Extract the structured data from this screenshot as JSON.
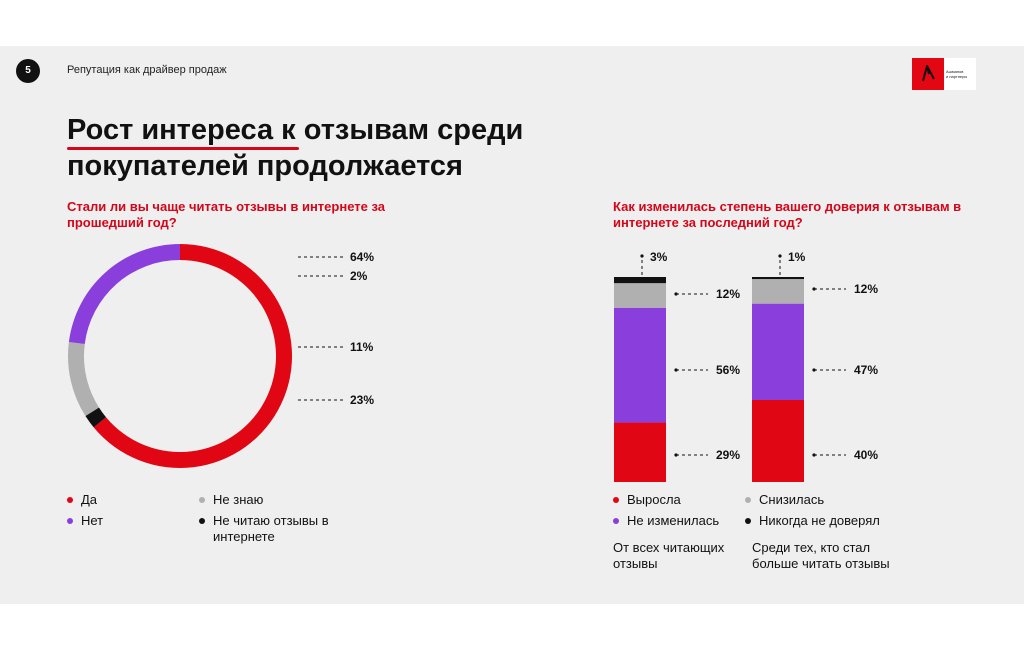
{
  "header": {
    "page_number": "5",
    "subtitle": "Репутация как драйвер продаж",
    "logo_text_line1": "Ашманов",
    "logo_text_line2": "и партнеры"
  },
  "title": {
    "line1": "Рост интереса к отзывам среди",
    "line2": "покупателей продолжается"
  },
  "colors": {
    "red": "#e00614",
    "purple": "#8a3fdc",
    "grey": "#b0b0b0",
    "black": "#111111",
    "accent": "#d4061a"
  },
  "left": {
    "question": "Стали ли вы чаще читать отзывы в интернете за прошедший год?",
    "legend": [
      {
        "label": "Да",
        "color": "#e00614"
      },
      {
        "label": "Нет",
        "color": "#8a3fdc"
      },
      {
        "label": "Не знаю",
        "color": "#b0b0b0"
      },
      {
        "label": "Не читаю отзывы в интернете",
        "color": "#111111"
      }
    ]
  },
  "right": {
    "question": "Как изменилась степень вашего доверия к отзывам в интернете за последний год?",
    "legend": [
      {
        "label": "Выросла",
        "color": "#e00614"
      },
      {
        "label": "Не изменилась",
        "color": "#8a3fdc"
      },
      {
        "label": "Снизилась",
        "color": "#b0b0b0"
      },
      {
        "label": "Никогда не доверял",
        "color": "#111111"
      }
    ],
    "captions": [
      "От всех читающих отзывы",
      "Среди тех, кто стал больше читать отзывы"
    ]
  },
  "chart_data": [
    {
      "type": "pie",
      "title": "",
      "categories": [
        "Да",
        "Не читаю отзывы в интернете",
        "Не знаю",
        "Нет"
      ],
      "values": [
        64,
        2,
        11,
        23
      ],
      "labels": [
        "64%",
        "2%",
        "11%",
        "23%"
      ],
      "colors": [
        "#e00614",
        "#111111",
        "#b0b0b0",
        "#8a3fdc"
      ]
    },
    {
      "type": "bar",
      "stacked": true,
      "categories": [
        "От всех читающих отзывы",
        "Среди тех, кто стал больше читать отзывы"
      ],
      "series": [
        {
          "name": "Выросла",
          "values": [
            29,
            40
          ],
          "labels": [
            "29%",
            "40%"
          ],
          "color": "#e00614"
        },
        {
          "name": "Не изменилась",
          "values": [
            56,
            47
          ],
          "labels": [
            "56%",
            "47%"
          ],
          "color": "#8a3fdc"
        },
        {
          "name": "Снизилась",
          "values": [
            12,
            12
          ],
          "labels": [
            "12%",
            "12%"
          ],
          "color": "#b0b0b0"
        },
        {
          "name": "Никогда не доверял",
          "values": [
            3,
            1
          ],
          "labels": [
            "3%",
            "1%"
          ],
          "color": "#111111"
        }
      ]
    }
  ]
}
